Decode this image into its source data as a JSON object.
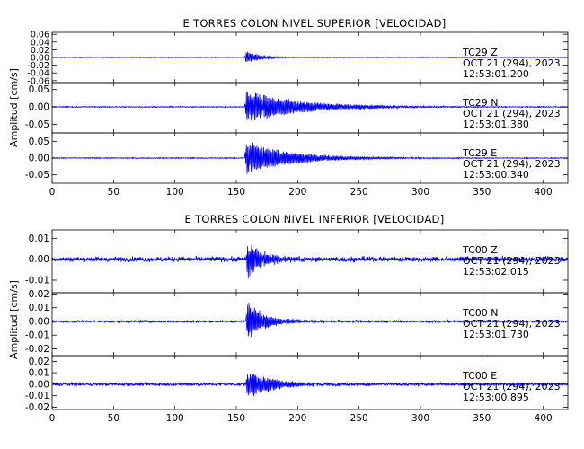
{
  "chart_data": [
    {
      "type": "line",
      "title": "E TORRES COLON NIVEL SUPERIOR [VELOCIDAD]",
      "ylabel": "Amplitud [cm/s]",
      "xlabel": "",
      "xlim": [
        0,
        420
      ],
      "x_ticks": [
        0,
        50,
        100,
        150,
        200,
        250,
        300,
        350,
        400
      ],
      "grid": false,
      "color": "#0000ff",
      "panels": [
        {
          "station": "TC29",
          "component": "Z",
          "date": "OCT 21 (294), 2023",
          "time": "12:53:01.200",
          "ylim": [
            -0.065,
            0.065
          ],
          "y_ticks": [
            -0.06,
            -0.04,
            -0.02,
            0.0,
            0.02,
            0.04,
            0.06
          ],
          "y_tick_labels": [
            "-0.06",
            "-0.04",
            "-0.02",
            "0.00",
            "0.02",
            "0.04",
            "0.06"
          ],
          "noise": 0.0006,
          "onset": 157,
          "peak": 0.02,
          "decay": 12
        },
        {
          "station": "TC29",
          "component": "N",
          "date": "OCT 21 (294), 2023",
          "time": "12:53:01.380",
          "ylim": [
            -0.075,
            0.07
          ],
          "y_ticks": [
            -0.05,
            0.0,
            0.05
          ],
          "y_tick_labels": [
            "-0.05",
            "0.00",
            "0.05"
          ],
          "noise": 0.0012,
          "onset": 157,
          "peak": 0.052,
          "decay": 45
        },
        {
          "station": "TC29",
          "component": "E",
          "date": "OCT 21 (294), 2023",
          "time": "12:53:00.340",
          "ylim": [
            -0.075,
            0.075
          ],
          "y_ticks": [
            -0.05,
            0.0,
            0.05
          ],
          "y_tick_labels": [
            "-0.05",
            "0.00",
            "0.05"
          ],
          "noise": 0.0012,
          "onset": 157,
          "peak": 0.055,
          "decay": 38
        }
      ]
    },
    {
      "type": "line",
      "title": "E TORRES COLON NIVEL INFERIOR [VELOCIDAD]",
      "ylabel": "Amplitud [cm/s]",
      "xlabel": "",
      "xlim": [
        0,
        420
      ],
      "x_ticks": [
        0,
        50,
        100,
        150,
        200,
        250,
        300,
        350,
        400
      ],
      "grid": false,
      "color": "#0000ff",
      "panels": [
        {
          "station": "TC00",
          "component": "Z",
          "date": "OCT 21 (294), 2023",
          "time": "12:53:02.015",
          "ylim": [
            -0.016,
            0.014
          ],
          "y_ticks": [
            -0.01,
            0.0,
            0.01
          ],
          "y_tick_labels": [
            "-0.01",
            "0.00",
            "0.01"
          ],
          "noise": 0.0011,
          "onset": 158,
          "peak": 0.011,
          "decay": 14
        },
        {
          "station": "TC00",
          "component": "N",
          "date": "OCT 21 (294), 2023",
          "time": "12:53:01.730",
          "ylim": [
            -0.025,
            0.021
          ],
          "y_ticks": [
            -0.02,
            -0.01,
            0.0,
            0.01,
            0.02
          ],
          "y_tick_labels": [
            "-0.02",
            "-0.01",
            "0.00",
            "0.01",
            "0.02"
          ],
          "noise": 0.0007,
          "onset": 158,
          "peak": 0.016,
          "decay": 16
        },
        {
          "station": "TC00",
          "component": "E",
          "date": "OCT 21 (294), 2023",
          "time": "12:53:00.895",
          "ylim": [
            -0.022,
            0.025
          ],
          "y_ticks": [
            -0.02,
            -0.01,
            0.0,
            0.01,
            0.02
          ],
          "y_tick_labels": [
            "-0.02",
            "-0.01",
            "0.00",
            "0.01",
            "0.02"
          ],
          "noise": 0.0012,
          "onset": 158,
          "peak": 0.014,
          "decay": 22
        }
      ]
    }
  ]
}
